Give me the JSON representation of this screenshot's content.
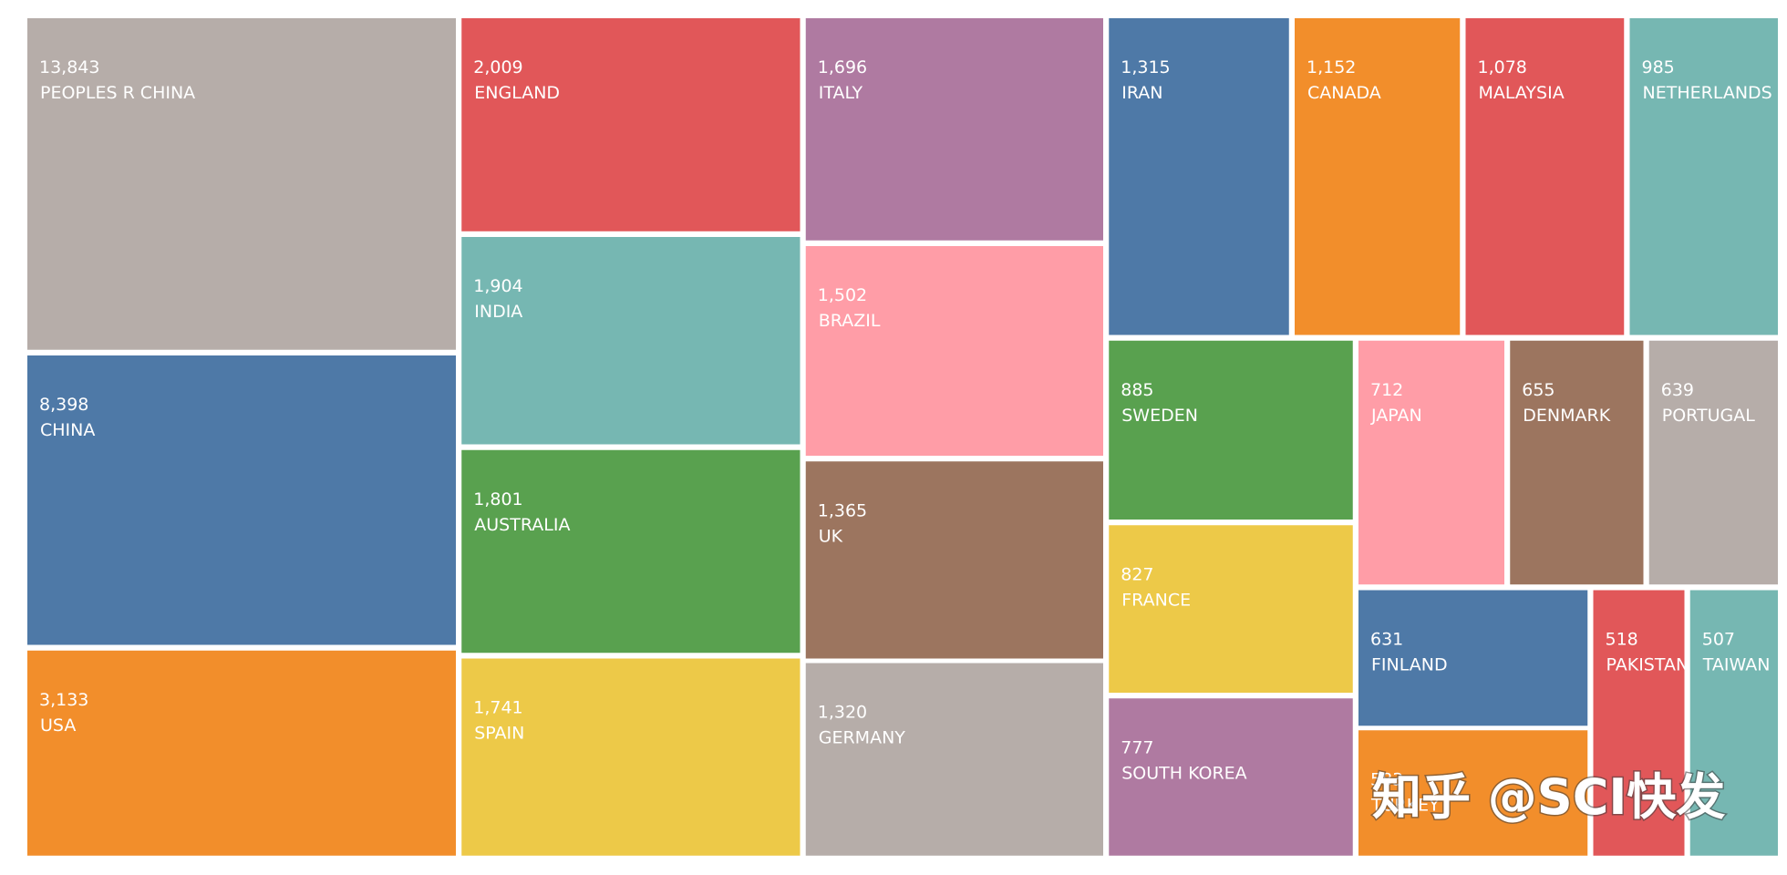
{
  "chart_data": {
    "type": "treemap",
    "categories": [
      "PEOPLES R CHINA",
      "CHINA",
      "USA",
      "ENGLAND",
      "INDIA",
      "AUSTRALIA",
      "SPAIN",
      "ITALY",
      "BRAZIL",
      "UK",
      "GERMANY",
      "IRAN",
      "CANADA",
      "MALAYSIA",
      "NETHERLANDS",
      "SWEDEN",
      "FRANCE",
      "SOUTH KOREA",
      "JAPAN",
      "DENMARK",
      "PORTUGAL",
      "FINLAND",
      "TURKEY",
      "PAKISTAN",
      "TAIWAN"
    ],
    "values": [
      13843,
      8398,
      3133,
      2009,
      1904,
      1801,
      1741,
      1696,
      1502,
      1365,
      1320,
      1315,
      1152,
      1078,
      985,
      885,
      827,
      777,
      712,
      655,
      639,
      631,
      583,
      518,
      507
    ],
    "value_labels": [
      "13,843",
      "8,398",
      "3,133",
      "2,009",
      "1,904",
      "1,801",
      "1,741",
      "1,696",
      "1,502",
      "1,365",
      "1,320",
      "1,315",
      "1,152",
      "1,078",
      "985",
      "885",
      "827",
      "777",
      "712",
      "655",
      "639",
      "631",
      "583",
      "518",
      "507"
    ],
    "colors": [
      "#b6ada9",
      "#4e79a7",
      "#f28e2b",
      "#e15759",
      "#76b7b2",
      "#59a14f",
      "#edc948",
      "#af7aa1",
      "#ff9da7",
      "#9c755f",
      "#b6ada9",
      "#4e79a7",
      "#f28e2b",
      "#e15759",
      "#76b7b2",
      "#59a14f",
      "#edc948",
      "#af7aa1",
      "#ff9da7",
      "#9c755f",
      "#b6ada9",
      "#4e79a7",
      "#f28e2b",
      "#e15759",
      "#76b7b2"
    ]
  },
  "watermark": "知乎 @SCI快发"
}
